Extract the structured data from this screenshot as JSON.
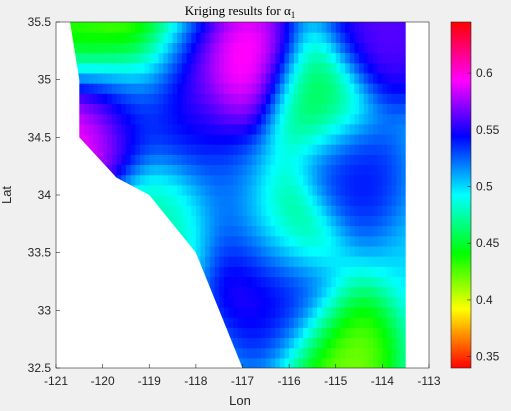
{
  "chart_data": {
    "type": "heatmap",
    "title": "Kriging results for α",
    "title_subscript": "1",
    "xlabel": "Lon",
    "ylabel": "Lat",
    "xlim": [
      -121,
      -113
    ],
    "ylim": [
      32.5,
      35.5
    ],
    "xticks": [
      "-121",
      "-120",
      "-119",
      "-118",
      "-117",
      "-116",
      "-115",
      "-114",
      "-113"
    ],
    "yticks": [
      "32.5",
      "33",
      "33.5",
      "34",
      "34.5",
      "35",
      "35.5"
    ],
    "colorbar": {
      "range": [
        0.34,
        0.645
      ],
      "ticks": [
        "0.35",
        "0.4",
        "0.45",
        "0.5",
        "0.55",
        "0.6"
      ],
      "colormap": "hsv"
    },
    "data_extent": {
      "lon": [
        -120.7,
        -113.5
      ],
      "lat": [
        32.5,
        35.5
      ],
      "mask_boundary": [
        [
          -120.7,
          35.5
        ],
        [
          -120.5,
          35.0
        ],
        [
          -120.5,
          34.5
        ],
        [
          -119.7,
          34.15
        ],
        [
          -119.0,
          34.0
        ],
        [
          -118.0,
          33.5
        ],
        [
          -117.0,
          32.5
        ]
      ]
    },
    "grid": false,
    "legend": "none",
    "field_hotspots": [
      {
        "lon": -120.4,
        "lat": 34.6,
        "value": 0.62
      },
      {
        "lon": -118.3,
        "lat": 35.3,
        "value": 0.58
      },
      {
        "lon": -116.95,
        "lat": 35.1,
        "value": 0.62
      },
      {
        "lon": -114.0,
        "lat": 35.4,
        "value": 0.57
      },
      {
        "lon": -116.55,
        "lat": 33.5,
        "value": 0.6
      },
      {
        "lon": -119.0,
        "lat": 35.5,
        "value": 0.38
      },
      {
        "lon": -120.3,
        "lat": 35.4,
        "value": 0.42
      },
      {
        "lon": -115.0,
        "lat": 32.6,
        "value": 0.4
      },
      {
        "lon": -116.2,
        "lat": 33.7,
        "value": 0.4
      },
      {
        "lon": -118.0,
        "lat": 34.6,
        "value": 0.55
      },
      {
        "lon": -114.9,
        "lat": 34.2,
        "value": 0.55
      },
      {
        "lon": -117.2,
        "lat": 34.0,
        "value": 0.53
      },
      {
        "lon": -119.5,
        "lat": 34.8,
        "value": 0.53
      },
      {
        "lon": -115.5,
        "lat": 34.8,
        "value": 0.44
      },
      {
        "lon": -116.0,
        "lat": 33.0,
        "value": 0.55
      },
      {
        "lon": -118.6,
        "lat": 33.8,
        "value": 0.47
      }
    ]
  }
}
